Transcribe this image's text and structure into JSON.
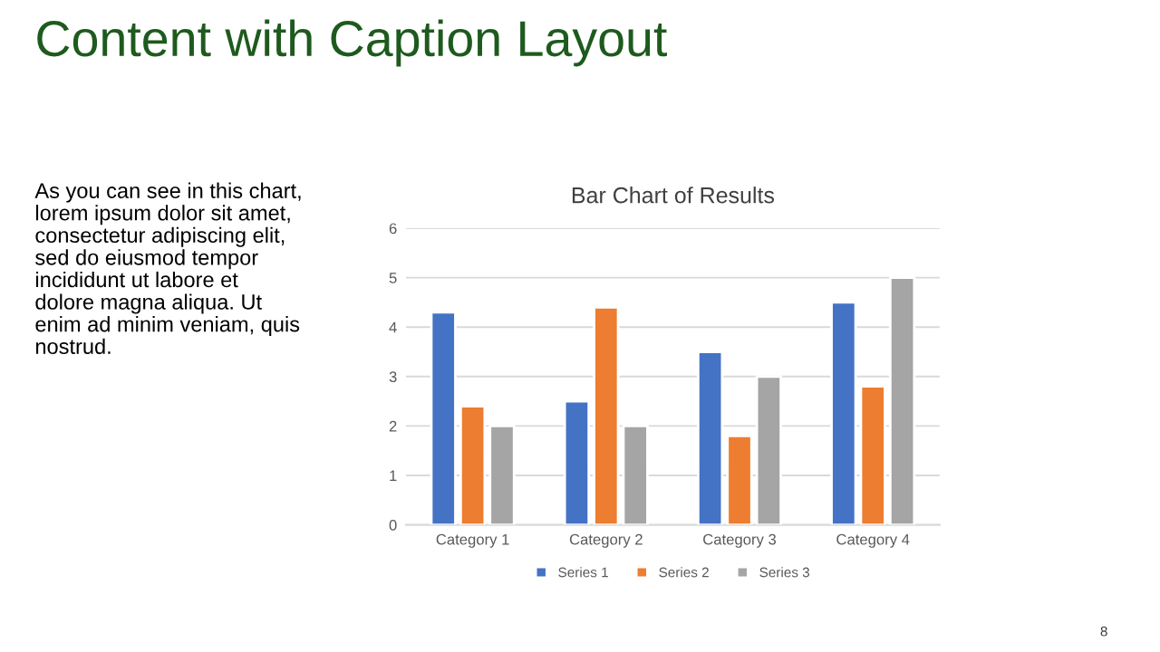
{
  "chart_data": {
    "type": "bar",
    "title": "Bar Chart of Results",
    "annotations": [
      "Content with Caption Layout",
      "As you can see in this chart,\nlorem ipsum dolor sit amet,\nconsectetur adipiscing elit,\nsed do eiusmod tempor\nincididunt ut labore et\ndolore magna aliqua. Ut\nenim ad minim veniam, quis\nnostrud.",
      "8"
    ],
    "categories": [
      "Category 1",
      "Category 2",
      "Category 3",
      "Category 4"
    ],
    "series": [
      {
        "name": "Series 1",
        "color": "#4472c4",
        "values": [
          4.3,
          2.5,
          3.5,
          4.5
        ]
      },
      {
        "name": "Series 2",
        "color": "#ed7d31",
        "values": [
          2.4,
          4.4,
          1.8,
          2.8
        ]
      },
      {
        "name": "Series 3",
        "color": "#a5a5a5",
        "values": [
          2,
          2,
          3,
          5
        ]
      }
    ],
    "ylim": [
      0,
      6
    ],
    "yticks": [
      0,
      1,
      2,
      3,
      4,
      5,
      6
    ],
    "grid": "y",
    "legend": "bottom"
  }
}
